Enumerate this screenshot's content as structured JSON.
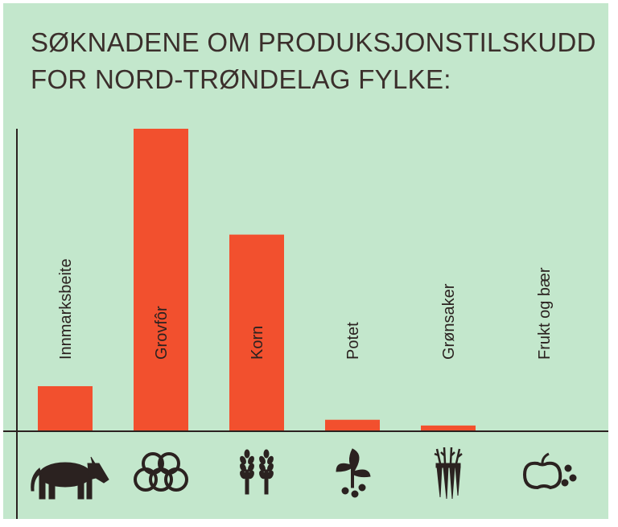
{
  "title_lines": [
    "SØKNADENE OM PRODUKSJONSTILSKUDD",
    "FOR NORD-TRØNDELAG FYLKE:"
  ],
  "colors": {
    "background": "#c3e7cc",
    "bar": "#f2502e",
    "axis": "#2b2220",
    "text": "#2b2220"
  },
  "chart_data": {
    "type": "bar",
    "title": "SØKNADENE OM PRODUKSJONSTILSKUDD FOR NORD-TRØNDELAG FYLKE:",
    "categories": [
      "Innmarksbeite",
      "Grovfôr",
      "Korn",
      "Potet",
      "Grønsaker",
      "Frukt og bær"
    ],
    "icons": [
      "cow-icon",
      "hay-bales-icon",
      "wheat-icon",
      "potato-plant-icon",
      "carrots-icon",
      "apple-berries-icon"
    ],
    "values": [
      14.9,
      100,
      65,
      3.8,
      1.9,
      0
    ],
    "ylim": [
      0,
      100
    ],
    "xlabel": "",
    "ylabel": "",
    "grid": false,
    "legend": "none"
  }
}
